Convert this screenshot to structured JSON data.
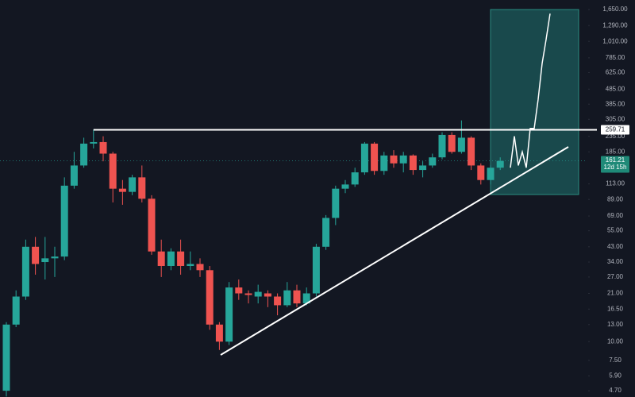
{
  "chart_data": {
    "type": "candlestick",
    "log_scale": true,
    "ylim": [
      4.27,
      1910
    ],
    "yticks": [
      {
        "value": 1650,
        "label": "1,650.00"
      },
      {
        "value": 1290,
        "label": "1,290.00"
      },
      {
        "value": 1010,
        "label": "1,010.00"
      },
      {
        "value": 785,
        "label": "785.00"
      },
      {
        "value": 625,
        "label": "625.00"
      },
      {
        "value": 485,
        "label": "485.00"
      },
      {
        "value": 385,
        "label": "385.00"
      },
      {
        "value": 305,
        "label": "305.00"
      },
      {
        "value": 235,
        "label": "235.00"
      },
      {
        "value": 185,
        "label": "185.00"
      },
      {
        "value": 113,
        "label": "113.00"
      },
      {
        "value": 89,
        "label": "89.00"
      },
      {
        "value": 69,
        "label": "69.00"
      },
      {
        "value": 55,
        "label": "55.00"
      },
      {
        "value": 43,
        "label": "43.00"
      },
      {
        "value": 34,
        "label": "34.00"
      },
      {
        "value": 27,
        "label": "27.00"
      },
      {
        "value": 21,
        "label": "21.00"
      },
      {
        "value": 16.5,
        "label": "16.50"
      },
      {
        "value": 13,
        "label": "13.00"
      },
      {
        "value": 10,
        "label": "10.00"
      },
      {
        "value": 7.5,
        "label": "7.50"
      },
      {
        "value": 5.9,
        "label": "5.90"
      },
      {
        "value": 4.7,
        "label": "4.70"
      }
    ],
    "up_color": "#26a69a",
    "down_color": "#ef5350",
    "open": [
      4.7,
      13,
      20,
      43,
      34,
      36,
      37,
      110,
      150,
      210,
      215,
      180,
      105,
      100,
      125,
      90,
      40,
      32,
      40,
      32,
      33,
      30,
      13,
      10,
      23,
      21,
      20,
      21,
      20,
      17.5,
      22,
      18,
      21,
      43,
      67,
      105,
      112,
      135,
      210,
      138,
      175,
      155,
      175,
      140,
      150,
      170,
      240,
      185,
      230,
      150,
      120,
      145
    ],
    "high": [
      13.5,
      22,
      48,
      50,
      50,
      43,
      125,
      185,
      230,
      260,
      235,
      185,
      120,
      130,
      150,
      95,
      48,
      42,
      48,
      40,
      36,
      32,
      13.5,
      25,
      26,
      22,
      24,
      22,
      21,
      25,
      24,
      23,
      45,
      70,
      110,
      120,
      145,
      215,
      215,
      185,
      190,
      185,
      178,
      160,
      180,
      250,
      250,
      300,
      235,
      155,
      150,
      170
    ],
    "low": [
      4.3,
      12.5,
      19,
      28,
      26,
      27,
      35,
      105,
      145,
      195,
      160,
      85,
      82,
      95,
      85,
      38,
      27,
      30,
      28,
      30,
      27,
      12,
      8.8,
      9.5,
      19,
      18,
      18,
      17,
      15,
      17,
      17,
      17.5,
      20,
      41,
      60,
      98,
      108,
      130,
      130,
      130,
      145,
      135,
      130,
      125,
      145,
      165,
      180,
      180,
      140,
      112,
      112,
      140
    ],
    "close": [
      13,
      20,
      43,
      33,
      36,
      37,
      110,
      150,
      210,
      215,
      180,
      105,
      100,
      125,
      90,
      40,
      32,
      40,
      32,
      33,
      30,
      13,
      10,
      23,
      21,
      20.5,
      21.5,
      20,
      17.5,
      22,
      18,
      21,
      43,
      67,
      105,
      112,
      135,
      210,
      138,
      175,
      155,
      175,
      140,
      150,
      170,
      240,
      185,
      230,
      150,
      120,
      145,
      161
    ],
    "resistance": 259.71,
    "last_price": 161.21,
    "countdown": "12d 15h",
    "trendline": [
      8.15,
      199.6
    ],
    "target_zone": [
      96,
      1650
    ],
    "projection": [
      145,
      235,
      150,
      185,
      145,
      265,
      265,
      415,
      720,
      1040,
      1550
    ]
  }
}
